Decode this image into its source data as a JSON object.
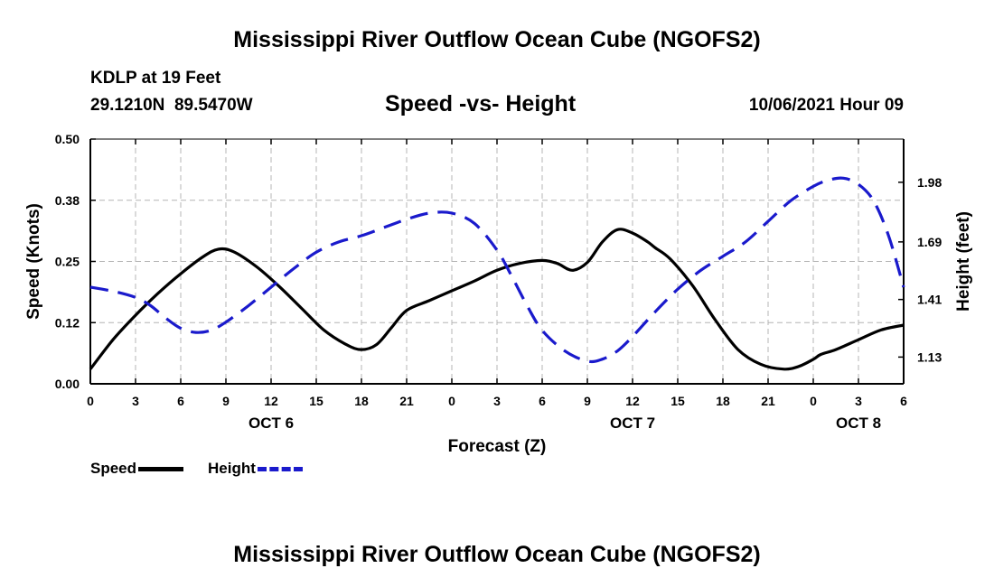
{
  "header": {
    "title": "Mississippi River Outflow Ocean Cube (NGOFS2)",
    "station": "KDLP at 19 Feet",
    "coords": "29.1210N  89.5470W",
    "subtitle": "Speed -vs- Height",
    "datetime": "10/06/2021 Hour 09"
  },
  "footer": {
    "title": "Mississippi River Outflow Ocean Cube (NGOFS2)"
  },
  "legend": {
    "speed_label": "Speed",
    "height_label": "Height"
  },
  "colors": {
    "speed": "#000000",
    "height": "#1a1acc",
    "grid": "#b4b4b4"
  },
  "chart_data": {
    "type": "line",
    "xlabel": "Forecast (Z)",
    "ylabel": "Speed (Knots)",
    "y2label": "Height (feet)",
    "xlim": [
      0,
      54
    ],
    "ylim": [
      0,
      0.5
    ],
    "y2lim": [
      1.0,
      2.19
    ],
    "x_ticks": [
      0,
      3,
      6,
      9,
      12,
      15,
      18,
      21,
      24,
      27,
      30,
      33,
      36,
      39,
      42,
      45,
      48,
      51,
      54
    ],
    "x_tick_labels": [
      "0",
      "3",
      "6",
      "9",
      "12",
      "15",
      "18",
      "21",
      "0",
      "3",
      "6",
      "9",
      "12",
      "15",
      "18",
      "21",
      "0",
      "3",
      "6"
    ],
    "y_ticks": [
      0.0,
      0.125,
      0.25,
      0.375,
      0.5
    ],
    "y_tick_labels": [
      "0.00",
      "0.12",
      "0.25",
      "0.38",
      "0.50"
    ],
    "y2_ticks": [
      1.13,
      1.41,
      1.69,
      1.98
    ],
    "y2_tick_labels": [
      "1.13",
      "1.41",
      "1.69",
      "1.98"
    ],
    "date_labels": [
      {
        "x": 12,
        "label": "OCT 6"
      },
      {
        "x": 36,
        "label": "OCT 7"
      },
      {
        "x": 51,
        "label": "OCT 8"
      }
    ],
    "grid": true,
    "legend_position": "bottom-left",
    "series": [
      {
        "name": "Speed",
        "axis": "left",
        "style": "solid",
        "x": [
          0,
          1.5,
          3,
          4.5,
          6,
          7.5,
          8.5,
          9.5,
          11,
          12.5,
          14,
          15.5,
          17,
          18,
          19,
          20,
          21,
          22.5,
          24,
          25.5,
          27,
          28.5,
          30,
          31,
          32,
          33,
          34,
          35,
          36,
          37,
          37.5,
          38.5,
          40,
          41.5,
          43,
          44.5,
          46,
          47,
          48,
          48.5,
          49.5,
          51,
          52.5,
          54
        ],
        "values": [
          0.03,
          0.09,
          0.14,
          0.185,
          0.225,
          0.26,
          0.275,
          0.27,
          0.24,
          0.2,
          0.155,
          0.11,
          0.08,
          0.07,
          0.08,
          0.115,
          0.15,
          0.17,
          0.19,
          0.21,
          0.232,
          0.246,
          0.252,
          0.246,
          0.232,
          0.248,
          0.29,
          0.315,
          0.308,
          0.29,
          0.278,
          0.255,
          0.2,
          0.13,
          0.07,
          0.04,
          0.03,
          0.035,
          0.05,
          0.06,
          0.07,
          0.09,
          0.11,
          0.12
        ]
      },
      {
        "name": "Height",
        "axis": "right",
        "style": "dashed",
        "x": [
          0,
          1.5,
          3,
          4,
          5,
          6,
          7,
          8,
          9,
          10.5,
          12,
          13.5,
          15,
          16.5,
          18,
          19.5,
          21,
          22.5,
          24,
          25.5,
          27,
          28,
          29,
          30,
          31.5,
          33,
          34,
          35,
          36,
          37.5,
          39,
          40.5,
          42,
          43.5,
          45,
          46.5,
          48,
          49,
          50,
          51,
          52,
          53,
          54
        ],
        "values": [
          1.47,
          1.45,
          1.42,
          1.38,
          1.32,
          1.27,
          1.25,
          1.26,
          1.3,
          1.38,
          1.47,
          1.56,
          1.64,
          1.69,
          1.72,
          1.76,
          1.8,
          1.83,
          1.83,
          1.78,
          1.65,
          1.52,
          1.38,
          1.26,
          1.16,
          1.11,
          1.12,
          1.16,
          1.23,
          1.35,
          1.46,
          1.55,
          1.62,
          1.69,
          1.79,
          1.89,
          1.96,
          1.99,
          2.0,
          1.97,
          1.89,
          1.72,
          1.47
        ]
      }
    ]
  }
}
